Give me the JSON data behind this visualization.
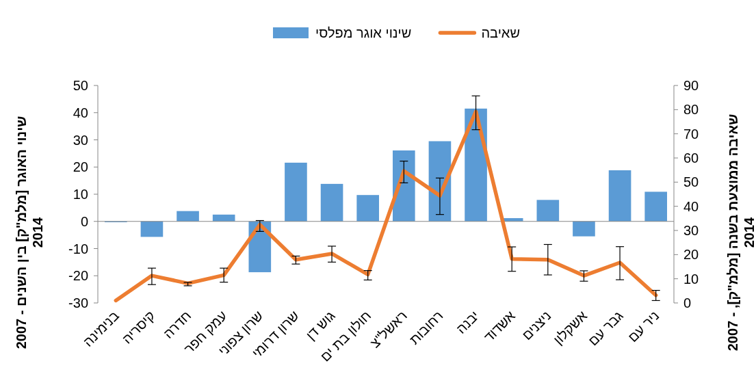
{
  "chart_data": {
    "type": "bar",
    "categories": [
      "בנימינה",
      "קיסריה",
      "חדרה",
      "עמק חפר",
      "שרון צפוני",
      "שרון דרומי",
      "גוש דן",
      "חולון בת ים",
      "ראשל\"צ",
      "רחובות",
      "יבנה",
      "אשדוד",
      "ניצנים",
      "אשקלון",
      "גבר עם",
      "ניר עם"
    ],
    "series": [
      {
        "name": "שינוי אוגר מפלסי",
        "color": "#5b9bd5",
        "values": [
          -0.3,
          -5.7,
          3.8,
          2.5,
          -18.7,
          21.6,
          13.8,
          9.7,
          26.1,
          29.5,
          41.5,
          1.2,
          7.9,
          -5.5,
          18.8,
          10.9
        ]
      },
      {
        "name": "שאיבה",
        "type": "line",
        "axis": "y2",
        "color": "#ed7d31",
        "values": [
          1.0,
          11.3,
          8.1,
          11.5,
          32.4,
          17.9,
          20.4,
          11.8,
          54.6,
          44.4,
          79.2,
          18.2,
          17.9,
          11.3,
          16.7,
          3.2
        ],
        "errors": [
          null,
          [
            7.6,
            14.4
          ],
          [
            7.1,
            8.5
          ],
          [
            8.6,
            14.4
          ],
          [
            29.6,
            34.1
          ],
          [
            16.1,
            19.4
          ],
          [
            16.9,
            23.5
          ],
          [
            9.5,
            13.4
          ],
          [
            49.7,
            58.7
          ],
          [
            36.6,
            51.7
          ],
          [
            71.7,
            85.7
          ],
          [
            13.1,
            23.2
          ],
          [
            11.6,
            24.2
          ],
          [
            9.0,
            13.3
          ],
          [
            9.6,
            23.3
          ],
          [
            1.0,
            5.2
          ]
        ]
      }
    ],
    "ylabel": "שינוי האוגר [מלמ\"ק] בין השנים - 2007\n2014",
    "y2label": "שאיבה ממוצעת בשנה [מלמ\"ק], - 2007\n2014",
    "ylim": [
      -30,
      50
    ],
    "yticks": [
      -30,
      -20,
      -10,
      0,
      10,
      20,
      30,
      40,
      50
    ],
    "y2lim": [
      0,
      90
    ],
    "y2ticks": [
      0,
      10,
      20,
      30,
      40,
      50,
      60,
      70,
      80,
      90
    ],
    "legend": "top"
  }
}
